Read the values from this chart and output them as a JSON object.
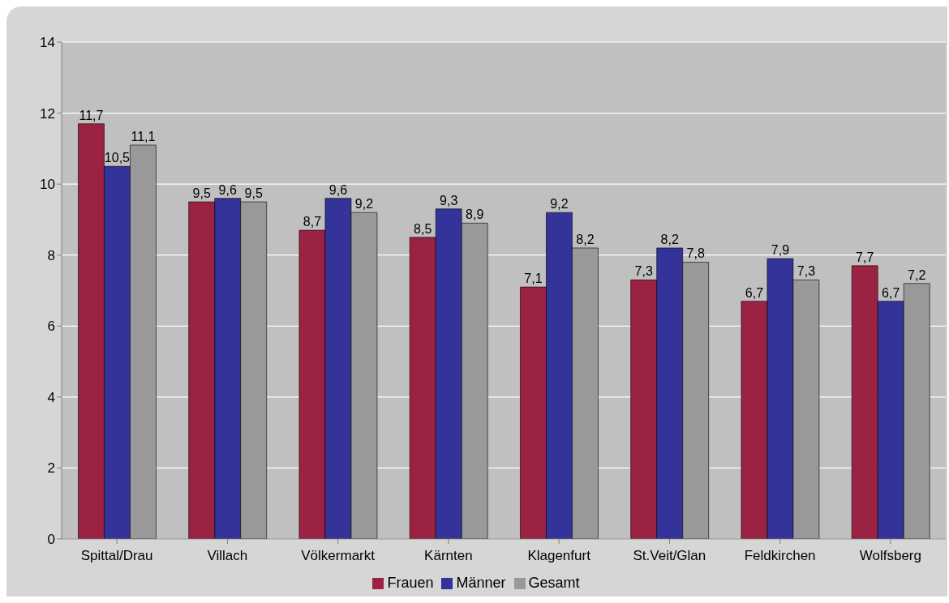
{
  "chart_data": {
    "type": "bar",
    "categories": [
      "Spittal/Drau",
      "Villach",
      "Völkermarkt",
      "Kärnten",
      "Klagenfurt",
      "St.Veit/Glan",
      "Feldkirchen",
      "Wolfsberg"
    ],
    "series": [
      {
        "name": "Frauen",
        "color": "#9b2242",
        "values": [
          11.7,
          9.5,
          8.7,
          8.5,
          7.1,
          7.3,
          6.7,
          7.7
        ],
        "value_labels": [
          "11,7",
          "9,5",
          "8,7",
          "8,5",
          "7,1",
          "7,3",
          "6,7",
          "7,7"
        ]
      },
      {
        "name": "Männer",
        "color": "#333399",
        "values": [
          10.5,
          9.6,
          9.6,
          9.3,
          9.2,
          8.2,
          7.9,
          6.7
        ],
        "value_labels": [
          "10,5",
          "9,6",
          "9,6",
          "9,3",
          "9,2",
          "8,2",
          "7,9",
          "6,7"
        ]
      },
      {
        "name": "Gesamt",
        "color": "#999999",
        "values": [
          11.1,
          9.5,
          9.2,
          8.9,
          8.2,
          7.8,
          7.3,
          7.2
        ],
        "value_labels": [
          "11,1",
          "9,5",
          "9,2",
          "8,9",
          "8,2",
          "7,8",
          "7,3",
          "7,2"
        ]
      }
    ],
    "ylim": [
      0,
      14
    ],
    "yticks": [
      0,
      2,
      4,
      6,
      8,
      10,
      12,
      14
    ],
    "grid": "y",
    "legend": "bottom"
  }
}
